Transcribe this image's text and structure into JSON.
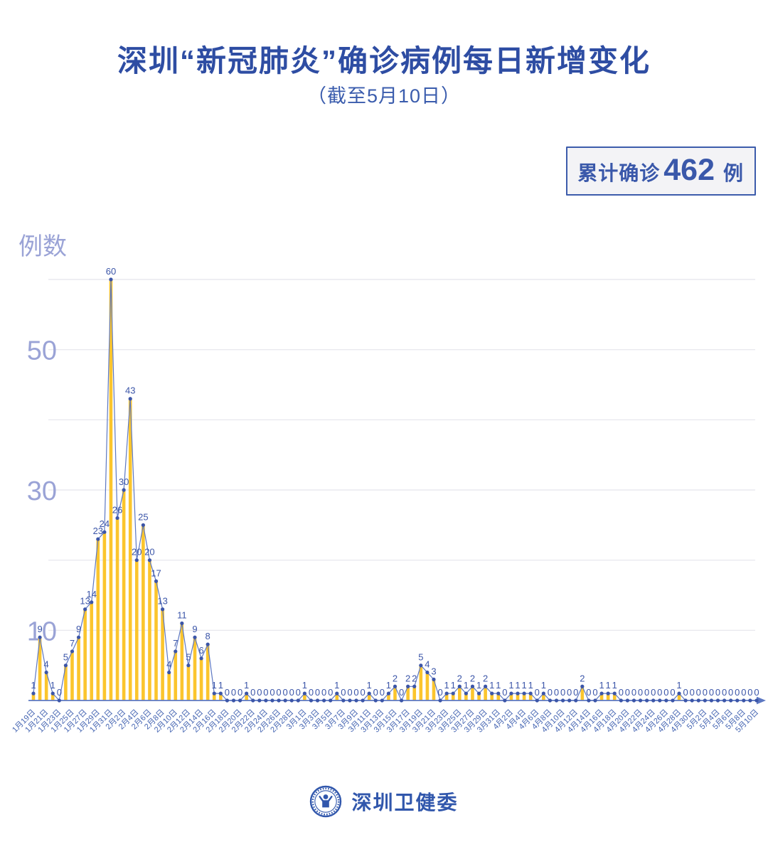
{
  "page": {
    "title": "深圳“新冠肺炎”确诊病例每日新增变化",
    "subtitle": "（截至5月10日）",
    "badge": {
      "prefix": "累计确诊",
      "number": "462",
      "suffix": "例"
    },
    "footer": {
      "org": "深圳卫健委",
      "logo": "health-commission-seal-icon"
    }
  },
  "chart_data": {
    "type": "bar",
    "note": "yellow daily bars with blue line-and-dot overlay; every point labeled with its value",
    "title": "深圳“新冠肺炎”确诊病例每日新增变化",
    "subtitle": "（截至5月10日）",
    "ylabel": "例数",
    "ylim": [
      0,
      60
    ],
    "grid_step": 10,
    "grid": true,
    "y_tick_labels": [
      50,
      30,
      10
    ],
    "x_tick_every": 2,
    "x_tick_labels": [
      "1月19日",
      "1月21日",
      "1月23日",
      "1月25日",
      "1月27日",
      "1月29日",
      "1月31日",
      "2月2日",
      "2月4日",
      "2月6日",
      "2月8日",
      "2月10日",
      "2月12日",
      "2月14日",
      "2月16日",
      "2月18日",
      "2月20日",
      "2月22日",
      "2月24日",
      "2月26日",
      "2月28日",
      "3月1日",
      "3月3日",
      "3月5日",
      "3月7日",
      "3月9日",
      "3月11日",
      "3月13日",
      "3月15日",
      "3月17日",
      "3月19日",
      "3月21日",
      "3月23日",
      "3月25日",
      "3月27日",
      "3月29日",
      "3月31日",
      "4月2日",
      "4月4日",
      "4月6日",
      "4月8日",
      "4月10日",
      "4月12日",
      "4月14日",
      "4月16日",
      "4月18日",
      "4月20日",
      "4月22日",
      "4月24日",
      "4月26日",
      "4月28日",
      "4月30日",
      "5月2日",
      "5月4日",
      "5月6日",
      "5月8日",
      "5月10日"
    ],
    "values": [
      1,
      9,
      4,
      1,
      0,
      5,
      7,
      9,
      13,
      14,
      23,
      24,
      60,
      26,
      30,
      43,
      20,
      25,
      20,
      17,
      13,
      4,
      7,
      11,
      5,
      9,
      6,
      8,
      1,
      1,
      0,
      0,
      0,
      1,
      0,
      0,
      0,
      0,
      0,
      0,
      0,
      0,
      1,
      0,
      0,
      0,
      0,
      1,
      0,
      0,
      0,
      0,
      1,
      0,
      0,
      1,
      2,
      0,
      2,
      2,
      5,
      4,
      3,
      0,
      1,
      1,
      2,
      1,
      2,
      1,
      2,
      1,
      1,
      0,
      1,
      1,
      1,
      1,
      0,
      1,
      0,
      0,
      0,
      0,
      0,
      2,
      0,
      0,
      1,
      1,
      1,
      0,
      0,
      0,
      0,
      0,
      0,
      0,
      0,
      0,
      1,
      0,
      0,
      0,
      0,
      0,
      0,
      0,
      0,
      0,
      0,
      0,
      0
    ],
    "cumulative_total": 462,
    "colors": {
      "bar": "#fbc52d",
      "line": "#5d78c2",
      "marker": "#3b55a8",
      "value_label": "#3b55a8",
      "axis_text": "#9aa3d6",
      "tick_text": "#4565b2",
      "grid": "#e4e4ec",
      "axis_line": "#5d78c2"
    }
  }
}
